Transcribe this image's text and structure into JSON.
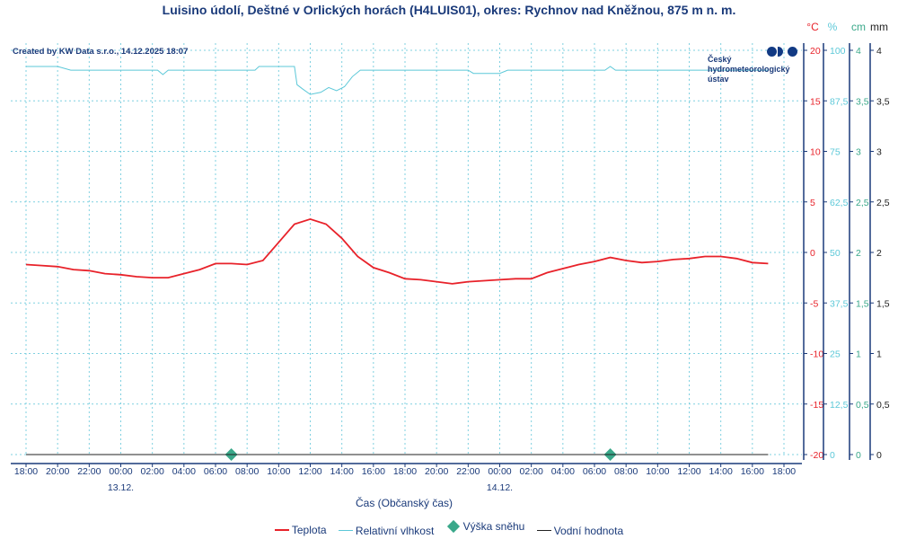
{
  "title": "Luisino údolí, Deštné v Orlických horách (H4LUIS01), okres: Rychnov nad Kněžnou, 875 m n. m.",
  "credit": "Created by KW Data s.r.o., 14.12.2025 18:07",
  "logo": {
    "line1": "Český",
    "line2": "hydrometeorologický",
    "line3": "ústav"
  },
  "colors": {
    "temperature": "#e8222a",
    "humidity": "#5cc8d8",
    "snow": "#3aa88a",
    "water": "#222222",
    "axis": "#1a3a7a"
  },
  "chart_data": {
    "type": "line",
    "xlabel": "Čas (Občanský čas)",
    "x_ticks": [
      "18:00",
      "20:00",
      "22:00",
      "00:00",
      "02:00",
      "04:00",
      "06:00",
      "08:00",
      "10:00",
      "12:00",
      "14:00",
      "16:00",
      "18:00",
      "20:00",
      "22:00",
      "00:00",
      "02:00",
      "04:00",
      "06:00",
      "08:00",
      "10:00",
      "12:00",
      "14:00",
      "16:00",
      "18:00"
    ],
    "x_range": [
      "12.12. 18:00",
      "14.12. 18:00"
    ],
    "date_labels": [
      {
        "at": "13.12. 00:00",
        "label": "13.12."
      },
      {
        "at": "14.12. 00:00",
        "label": "14.12."
      }
    ],
    "grid": true,
    "axes": [
      {
        "unit": "°C",
        "ticks": [
          "20",
          "15",
          "10",
          "5",
          "0",
          "-5",
          "-10",
          "-15",
          "-20"
        ],
        "range": [
          -20,
          20
        ],
        "color": "#e8222a"
      },
      {
        "unit": "%",
        "ticks": [
          "100",
          "87,5",
          "75",
          "62,5",
          "50",
          "37,5",
          "25",
          "12,5",
          "0"
        ],
        "range": [
          0,
          100
        ],
        "color": "#5cc8d8"
      },
      {
        "unit": "cm",
        "ticks": [
          "4",
          "3,5",
          "3",
          "2,5",
          "2",
          "1,5",
          "1",
          "0,5",
          "0"
        ],
        "range": [
          0,
          4
        ],
        "color": "#3aa88a"
      },
      {
        "unit": "mm",
        "ticks": [
          "4",
          "3,5",
          "3",
          "2,5",
          "2",
          "1,5",
          "1",
          "0,5",
          "0"
        ],
        "range": [
          0,
          4
        ],
        "color": "#222222"
      }
    ],
    "legend_position": "bottom",
    "series": [
      {
        "name": "Teplota",
        "axis": "°C",
        "points": [
          [
            "12.12. 18:00",
            -1.2
          ],
          [
            "12.12. 19:00",
            -1.3
          ],
          [
            "12.12. 20:00",
            -1.4
          ],
          [
            "12.12. 21:00",
            -1.7
          ],
          [
            "12.12. 22:00",
            -1.8
          ],
          [
            "12.12. 23:00",
            -2.1
          ],
          [
            "13.12. 00:00",
            -2.2
          ],
          [
            "13.12. 01:00",
            -2.4
          ],
          [
            "13.12. 02:00",
            -2.5
          ],
          [
            "13.12. 03:00",
            -2.5
          ],
          [
            "13.12. 04:00",
            -2.1
          ],
          [
            "13.12. 05:00",
            -1.7
          ],
          [
            "13.12. 06:00",
            -1.1
          ],
          [
            "13.12. 07:00",
            -1.1
          ],
          [
            "13.12. 08:00",
            -1.2
          ],
          [
            "13.12. 09:00",
            -0.8
          ],
          [
            "13.12. 10:00",
            1.0
          ],
          [
            "13.12. 11:00",
            2.8
          ],
          [
            "13.12. 12:00",
            3.3
          ],
          [
            "13.12. 13:00",
            2.8
          ],
          [
            "13.12. 14:00",
            1.4
          ],
          [
            "13.12. 15:00",
            -0.4
          ],
          [
            "13.12. 16:00",
            -1.5
          ],
          [
            "13.12. 17:00",
            -2.0
          ],
          [
            "13.12. 18:00",
            -2.6
          ],
          [
            "13.12. 19:00",
            -2.7
          ],
          [
            "13.12. 20:00",
            -2.9
          ],
          [
            "13.12. 21:00",
            -3.1
          ],
          [
            "13.12. 22:00",
            -2.9
          ],
          [
            "13.12. 23:00",
            -2.8
          ],
          [
            "14.12. 00:00",
            -2.7
          ],
          [
            "14.12. 01:00",
            -2.6
          ],
          [
            "14.12. 02:00",
            -2.6
          ],
          [
            "14.12. 03:00",
            -2.0
          ],
          [
            "14.12. 04:00",
            -1.6
          ],
          [
            "14.12. 05:00",
            -1.2
          ],
          [
            "14.12. 06:00",
            -0.9
          ],
          [
            "14.12. 07:00",
            -0.5
          ],
          [
            "14.12. 08:00",
            -0.8
          ],
          [
            "14.12. 09:00",
            -1.0
          ],
          [
            "14.12. 10:00",
            -0.9
          ],
          [
            "14.12. 11:00",
            -0.7
          ],
          [
            "14.12. 12:00",
            -0.6
          ],
          [
            "14.12. 13:00",
            -0.4
          ],
          [
            "14.12. 14:00",
            -0.4
          ],
          [
            "14.12. 15:00",
            -0.6
          ],
          [
            "14.12. 16:00",
            -1.0
          ],
          [
            "14.12. 17:00",
            -1.1
          ]
        ]
      },
      {
        "name": "Relativní vlhkost",
        "axis": "%",
        "points": [
          [
            "12.12. 18:00",
            96.0
          ],
          [
            "12.12. 20:00",
            96.0
          ],
          [
            "12.12. 20:50",
            95.1
          ],
          [
            "13.12. 02:20",
            95.1
          ],
          [
            "13.12. 02:40",
            94.0
          ],
          [
            "13.12. 03:00",
            95.1
          ],
          [
            "13.12. 08:30",
            95.1
          ],
          [
            "13.12. 08:45",
            96.0
          ],
          [
            "13.12. 11:00",
            96.0
          ],
          [
            "13.12. 11:10",
            91.5
          ],
          [
            "13.12. 11:30",
            90.5
          ],
          [
            "13.12. 12:00",
            89.1
          ],
          [
            "13.12. 12:40",
            89.6
          ],
          [
            "13.12. 13:10",
            90.8
          ],
          [
            "13.12. 13:40",
            90.0
          ],
          [
            "13.12. 14:10",
            91.0
          ],
          [
            "13.12. 14:40",
            93.5
          ],
          [
            "13.12. 15:10",
            95.1
          ],
          [
            "13.12. 22:00",
            95.1
          ],
          [
            "13.12. 22:20",
            94.3
          ],
          [
            "14.12. 00:00",
            94.3
          ],
          [
            "14.12. 00:30",
            95.1
          ],
          [
            "14.12. 06:40",
            95.1
          ],
          [
            "14.12. 07:00",
            96.0
          ],
          [
            "14.12. 07:20",
            95.1
          ],
          [
            "14.12. 17:00",
            95.1
          ]
        ]
      },
      {
        "name": "Výška sněhu",
        "axis": "cm",
        "points": [
          [
            "12.12. 18:00",
            0
          ],
          [
            "14.12. 17:00",
            0
          ]
        ],
        "markers": [
          [
            "13.12. 07:00",
            0
          ],
          [
            "14.12. 07:00",
            0
          ]
        ]
      },
      {
        "name": "Vodní hodnota",
        "axis": "mm",
        "points": [
          [
            "12.12. 18:00",
            0
          ],
          [
            "14.12. 17:00",
            0
          ]
        ]
      }
    ]
  }
}
